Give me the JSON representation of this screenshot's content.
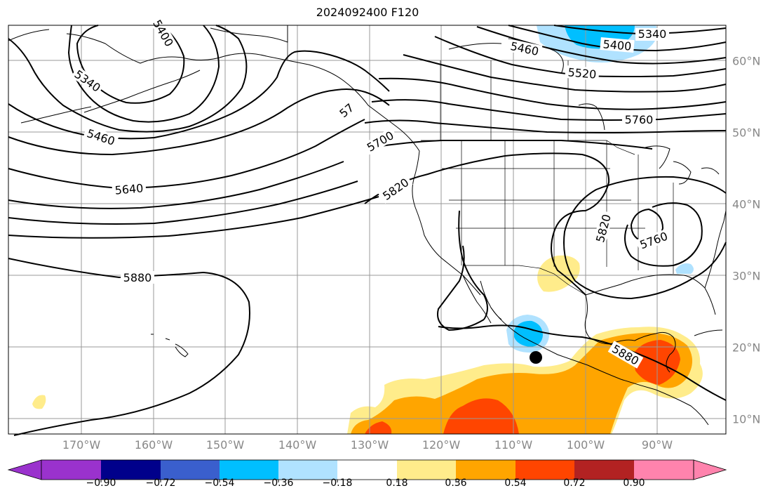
{
  "title": "2024092400 F120",
  "colors": {
    "neg_090": "#9a32cd",
    "neg_072": "#00008b",
    "neg_054": "#3a5fcd",
    "neg_036": "#00bfff",
    "neg_018": "#b0e2ff",
    "zero": "#ffffff",
    "pos_018": "#ffec8b",
    "pos_036": "#ffa500",
    "pos_054": "#ff4500",
    "pos_072": "#b22222",
    "pos_090": "#ff83ad",
    "contour": "#000000",
    "coast": "#000000",
    "grid": "#999999"
  },
  "lon_labels": [
    "170°W",
    "160°W",
    "150°W",
    "140°W",
    "130°W",
    "120°W",
    "110°W",
    "100°W",
    "90°W"
  ],
  "lat_labels": [
    "60°N",
    "50°N",
    "40°N",
    "30°N",
    "20°N",
    "10°N"
  ],
  "colorbar_labels": [
    "−0.90",
    "−0.72",
    "−0.54",
    "−0.36",
    "−0.18",
    "0.18",
    "0.36",
    "0.54",
    "0.72",
    "0.90"
  ],
  "contour_labels": {
    "c5400_nw": "5400",
    "c5340_nw": "5340",
    "c5460_nw": "5460",
    "c5640": "5640",
    "c5880_w": "5880",
    "c5340_ne": "5340",
    "c5400_ne": "5400",
    "c5460_ne": "5460",
    "c5520": "5520",
    "c5760_ne": "5760",
    "c57_coast": "57",
    "c5700": "5700",
    "c5820_w": "5820",
    "c5820_e": "5820",
    "c5760_low": "5760",
    "c5880_e": "5880"
  }
}
